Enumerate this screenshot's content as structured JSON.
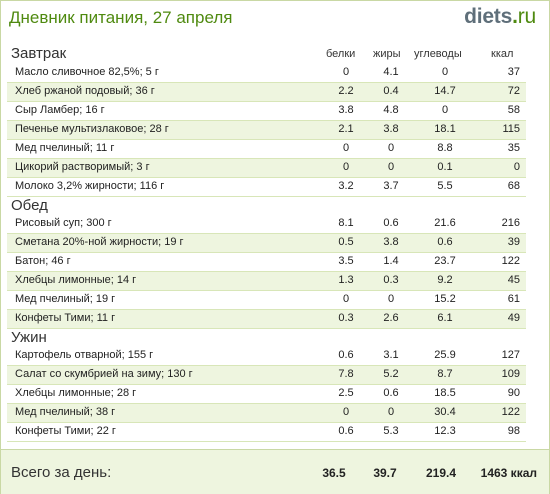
{
  "header": {
    "title": "Дневник питания, 27 апреля",
    "logo_name": "diets",
    "logo_dot": ".",
    "logo_tld": "ru"
  },
  "columns": {
    "protein": "белки",
    "fat": "жиры",
    "carbs": "углеводы",
    "kcal": "ккал"
  },
  "meals": [
    {
      "title": "Завтрак",
      "items": [
        {
          "name": "Масло сливочное 82,5%; 5 г",
          "protein": "0",
          "fat": "4.1",
          "carbs": "0",
          "kcal": "37"
        },
        {
          "name": "Хлеб ржаной подовый; 36 г",
          "protein": "2.2",
          "fat": "0.4",
          "carbs": "14.7",
          "kcal": "72"
        },
        {
          "name": "Сыр Ламбер; 16 г",
          "protein": "3.8",
          "fat": "4.8",
          "carbs": "0",
          "kcal": "58"
        },
        {
          "name": "Печенье мультизлаковое; 28 г",
          "protein": "2.1",
          "fat": "3.8",
          "carbs": "18.1",
          "kcal": "115"
        },
        {
          "name": "Мед пчелиный; 11 г",
          "protein": "0",
          "fat": "0",
          "carbs": "8.8",
          "kcal": "35"
        },
        {
          "name": "Цикорий растворимый; 3 г",
          "protein": "0",
          "fat": "0",
          "carbs": "0.1",
          "kcal": "0"
        },
        {
          "name": "Молоко 3,2% жирности; 116 г",
          "protein": "3.2",
          "fat": "3.7",
          "carbs": "5.5",
          "kcal": "68"
        }
      ]
    },
    {
      "title": "Обед",
      "items": [
        {
          "name": "Рисовый суп; 300 г",
          "protein": "8.1",
          "fat": "0.6",
          "carbs": "21.6",
          "kcal": "216"
        },
        {
          "name": "Сметана 20%-ной жирности; 19 г",
          "protein": "0.5",
          "fat": "3.8",
          "carbs": "0.6",
          "kcal": "39"
        },
        {
          "name": "Батон; 46 г",
          "protein": "3.5",
          "fat": "1.4",
          "carbs": "23.7",
          "kcal": "122"
        },
        {
          "name": "Хлебцы лимонные; 14 г",
          "protein": "1.3",
          "fat": "0.3",
          "carbs": "9.2",
          "kcal": "45"
        },
        {
          "name": "Мед пчелиный; 19 г",
          "protein": "0",
          "fat": "0",
          "carbs": "15.2",
          "kcal": "61"
        },
        {
          "name": "Конфеты Тими; 11 г",
          "protein": "0.3",
          "fat": "2.6",
          "carbs": "6.1",
          "kcal": "49"
        }
      ]
    },
    {
      "title": "Ужин",
      "items": [
        {
          "name": "Картофель отварной; 155 г",
          "protein": "0.6",
          "fat": "3.1",
          "carbs": "25.9",
          "kcal": "127"
        },
        {
          "name": "Салат со скумбрией на зиму; 130 г",
          "protein": "7.8",
          "fat": "5.2",
          "carbs": "8.7",
          "kcal": "109"
        },
        {
          "name": "Хлебцы лимонные; 28 г",
          "protein": "2.5",
          "fat": "0.6",
          "carbs": "18.5",
          "kcal": "90"
        },
        {
          "name": "Мед пчелиный; 38 г",
          "protein": "0",
          "fat": "0",
          "carbs": "30.4",
          "kcal": "122"
        },
        {
          "name": "Конфеты Тими; 22 г",
          "protein": "0.6",
          "fat": "5.3",
          "carbs": "12.3",
          "kcal": "98"
        }
      ]
    }
  ],
  "totals": {
    "label": "Всего за день:",
    "protein": "36.5",
    "fat": "39.7",
    "carbs": "219.4",
    "kcal": "1463 ккал"
  }
}
